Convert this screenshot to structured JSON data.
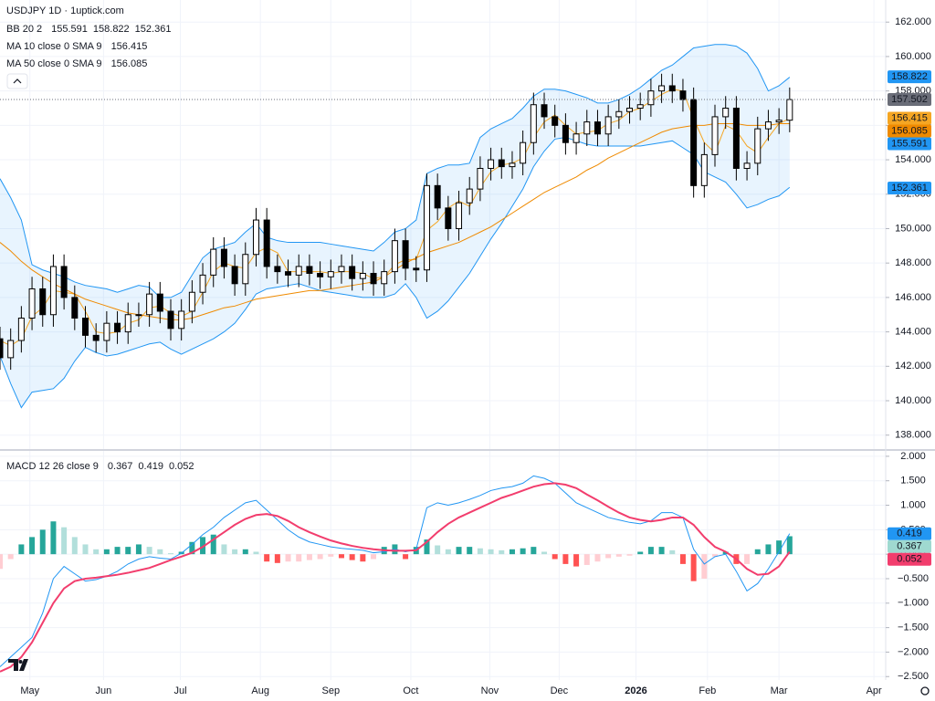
{
  "chart_data": [
    {
      "type": "candlestick",
      "title": "USDJPY 1D · 1uptick.com",
      "x": [
        0,
        1,
        2,
        3,
        4,
        5,
        6,
        7,
        8,
        9,
        10,
        11,
        12,
        13,
        14,
        15,
        16,
        17,
        18,
        19,
        20,
        21,
        22,
        23,
        24,
        25,
        26,
        27,
        28,
        29,
        30,
        31,
        32,
        33,
        34,
        35,
        36,
        37,
        38,
        39,
        40,
        41,
        42,
        43,
        44,
        45,
        46,
        47,
        48,
        49,
        50,
        51,
        52,
        53,
        54,
        55,
        56,
        57,
        58,
        59,
        60,
        61,
        62,
        63,
        64,
        65,
        66,
        67,
        68,
        69,
        70,
        71,
        72,
        73,
        74
      ],
      "xlim": [
        0,
        83
      ],
      "xticks": [
        {
          "value": 2.8,
          "label": "May"
        },
        {
          "value": 9.7,
          "label": "Jun"
        },
        {
          "value": 16.9,
          "label": "Jul"
        },
        {
          "value": 24.4,
          "label": "Aug"
        },
        {
          "value": 31.0,
          "label": "Sep"
        },
        {
          "value": 38.5,
          "label": "Oct"
        },
        {
          "value": 45.9,
          "label": "Nov"
        },
        {
          "value": 52.4,
          "label": "Dec"
        },
        {
          "value": 59.6,
          "label": "2026"
        },
        {
          "value": 66.3,
          "label": "Feb"
        },
        {
          "value": 73.0,
          "label": "Mar"
        },
        {
          "value": 81.9,
          "label": "Apr"
        }
      ],
      "open": [
        143.6,
        142.5,
        143.5,
        144.8,
        146.5,
        145.0,
        147.8,
        146.0,
        144.8,
        143.8,
        143.5,
        144.5,
        144.0,
        145.0,
        145.0,
        146.2,
        145.2,
        144.2,
        145.2,
        146.3,
        147.3,
        148.8,
        147.8,
        146.8,
        148.5,
        150.5,
        147.8,
        147.5,
        147.3,
        147.8,
        147.4,
        147.2,
        147.5,
        147.8,
        147.1,
        147.4,
        146.8,
        147.5,
        149.3,
        147.7,
        147.6,
        152.5,
        151.2,
        150.0,
        151.5,
        152.3,
        153.5,
        154.0,
        153.6,
        153.8,
        155.0,
        157.2,
        156.5,
        156.0,
        155.0,
        155.5,
        156.2,
        155.5,
        156.5,
        156.8,
        157.0,
        157.2,
        158.0,
        158.3,
        158.0,
        157.5,
        152.5,
        154.3,
        156.5,
        157.0,
        153.5,
        153.8,
        155.8,
        156.2,
        156.3
      ],
      "high": [
        144.3,
        144.2,
        145.5,
        147.2,
        147.2,
        148.5,
        148.5,
        146.7,
        145.5,
        144.5,
        145.2,
        145.2,
        145.7,
        145.7,
        146.9,
        146.9,
        145.9,
        145.9,
        147.0,
        148.0,
        149.5,
        149.5,
        148.5,
        149.2,
        151.2,
        151.2,
        148.5,
        148.2,
        148.5,
        148.5,
        148.1,
        148.2,
        148.5,
        148.5,
        148.1,
        148.1,
        148.2,
        150.0,
        150.0,
        148.4,
        153.2,
        153.2,
        151.9,
        152.2,
        153.0,
        154.2,
        154.7,
        154.7,
        154.5,
        155.7,
        157.9,
        157.9,
        157.2,
        156.7,
        156.2,
        156.9,
        156.9,
        157.2,
        157.5,
        157.7,
        157.9,
        158.7,
        159.0,
        159.0,
        158.7,
        158.2,
        155.0,
        157.2,
        157.7,
        157.7,
        154.5,
        156.5,
        156.9,
        157.0,
        158.2
      ],
      "low": [
        141.8,
        141.8,
        142.8,
        144.1,
        144.3,
        144.3,
        145.3,
        144.1,
        143.1,
        142.8,
        142.8,
        143.3,
        143.3,
        144.3,
        144.3,
        144.5,
        143.5,
        143.5,
        144.5,
        145.6,
        146.6,
        147.1,
        146.1,
        146.1,
        147.8,
        147.1,
        146.8,
        146.6,
        146.6,
        146.7,
        146.5,
        146.5,
        146.8,
        146.4,
        146.4,
        146.1,
        146.1,
        146.8,
        147.0,
        146.9,
        146.9,
        150.5,
        149.3,
        149.3,
        150.8,
        151.6,
        152.8,
        152.9,
        152.9,
        153.1,
        154.3,
        155.8,
        155.3,
        154.3,
        154.3,
        154.8,
        154.8,
        154.8,
        155.8,
        156.1,
        156.3,
        156.5,
        157.3,
        157.3,
        156.8,
        151.8,
        151.8,
        153.6,
        155.8,
        152.8,
        152.8,
        153.1,
        155.1,
        155.5,
        155.6
      ],
      "close": [
        142.5,
        143.5,
        144.8,
        146.5,
        145.0,
        147.8,
        146.0,
        144.8,
        143.8,
        143.5,
        144.5,
        144.0,
        145.0,
        145.0,
        146.2,
        145.2,
        144.2,
        145.2,
        146.3,
        147.3,
        148.8,
        147.8,
        146.8,
        148.5,
        150.5,
        147.8,
        147.5,
        147.3,
        147.8,
        147.4,
        147.2,
        147.5,
        147.8,
        147.1,
        147.4,
        146.8,
        147.5,
        149.3,
        147.7,
        147.6,
        152.5,
        151.2,
        150.0,
        151.5,
        152.3,
        153.5,
        154.0,
        153.6,
        153.8,
        155.0,
        157.2,
        156.5,
        156.0,
        155.0,
        155.5,
        156.2,
        155.5,
        156.5,
        156.8,
        157.0,
        157.2,
        158.0,
        158.3,
        158.0,
        157.5,
        152.5,
        154.3,
        156.5,
        157.0,
        153.5,
        153.8,
        155.8,
        156.2,
        156.3,
        157.5
      ],
      "up_color": "#ffffff",
      "down_color": "#000000",
      "wick_color": "#000000",
      "indicators": [
        {
          "name": "BB 20 2",
          "color": "#2196f3",
          "fill": "#2196f3",
          "upper": [
            152.9,
            151.8,
            150.5,
            147.9,
            147.6,
            147.4,
            147.2,
            146.9,
            146.7,
            146.6,
            146.5,
            146.3,
            146.5,
            146.7,
            146.6,
            146.0,
            146.0,
            146.3,
            147.3,
            148.3,
            148.8,
            149.0,
            149.2,
            149.8,
            150.3,
            149.5,
            149.3,
            149.2,
            149.2,
            149.2,
            149.2,
            149.1,
            149.0,
            148.9,
            148.8,
            148.7,
            149.2,
            149.8,
            150.0,
            150.5,
            153.2,
            153.5,
            153.7,
            153.7,
            153.8,
            155.3,
            155.8,
            156.1,
            156.4,
            157.0,
            157.7,
            158.1,
            158.1,
            158.0,
            157.8,
            157.6,
            157.3,
            157.3,
            157.5,
            157.8,
            158.2,
            158.7,
            159.2,
            159.5,
            160.0,
            160.5,
            160.6,
            160.7,
            160.7,
            160.6,
            160.2,
            159.3,
            158.0,
            158.3,
            158.8
          ],
          "lower": [
            142.6,
            141.0,
            139.6,
            140.5,
            140.6,
            140.7,
            141.3,
            142.3,
            143.1,
            142.8,
            142.6,
            142.7,
            142.9,
            143.1,
            143.3,
            143.4,
            143.0,
            142.7,
            143.0,
            143.3,
            143.6,
            144.0,
            144.5,
            145.3,
            146.2,
            146.5,
            146.6,
            146.7,
            146.8,
            146.6,
            146.4,
            146.3,
            146.2,
            146.1,
            146.0,
            146.0,
            146.0,
            146.2,
            146.8,
            146.0,
            144.8,
            145.2,
            145.8,
            146.6,
            147.4,
            148.4,
            149.4,
            150.3,
            151.3,
            152.3,
            153.6,
            154.5,
            155.2,
            155.3,
            155.1,
            154.9,
            154.8,
            154.8,
            154.8,
            154.8,
            154.8,
            154.9,
            155.0,
            155.1,
            154.7,
            154.3,
            153.3,
            153.0,
            152.7,
            152.0,
            151.2,
            151.4,
            151.7,
            151.9,
            152.4
          ],
          "readout": [
            155.591,
            158.822,
            152.361
          ]
        },
        {
          "name": "MA 10 close 0 SMA 9",
          "color": "#f5a623",
          "values": [
            143.5,
            143.2,
            143.6,
            144.9,
            145.4,
            146.4,
            146.3,
            146.2,
            145.2,
            144.0,
            143.9,
            144.0,
            144.5,
            144.7,
            145.4,
            145.5,
            145.1,
            144.9,
            145.2,
            146.3,
            147.5,
            148.0,
            147.8,
            147.7,
            148.6,
            148.9,
            148.6,
            147.5,
            147.5,
            147.5,
            147.5,
            147.4,
            147.5,
            147.5,
            147.4,
            147.1,
            147.2,
            147.9,
            148.2,
            148.2,
            149.9,
            150.4,
            151.2,
            151.6,
            151.3,
            152.4,
            153.3,
            153.7,
            153.8,
            154.1,
            155.3,
            156.2,
            156.6,
            156.0,
            155.5,
            155.6,
            155.7,
            156.1,
            156.3,
            156.8,
            157.0,
            157.4,
            157.8,
            158.1,
            158.0,
            156.4,
            155.0,
            154.4,
            156.0,
            155.7,
            154.8,
            154.4,
            155.3,
            156.1,
            156.4
          ],
          "readout": [
            156.415
          ]
        },
        {
          "name": "MA 50 close 0 SMA 9",
          "color": "#ef8a00",
          "values": [
            149.2,
            148.7,
            148.1,
            147.6,
            147.2,
            146.8,
            146.5,
            146.2,
            145.9,
            145.7,
            145.5,
            145.3,
            145.1,
            145.0,
            144.9,
            144.8,
            144.7,
            144.7,
            144.8,
            145.0,
            145.2,
            145.4,
            145.5,
            145.7,
            145.9,
            146.0,
            146.1,
            146.2,
            146.3,
            146.4,
            146.4,
            146.5,
            146.6,
            146.7,
            146.8,
            146.9,
            147.2,
            147.6,
            148.0,
            148.3,
            148.6,
            148.8,
            149.0,
            149.2,
            149.5,
            149.8,
            150.1,
            150.5,
            150.9,
            151.3,
            151.7,
            152.1,
            152.4,
            152.7,
            153.0,
            153.4,
            153.7,
            154.1,
            154.4,
            154.7,
            155.0,
            155.3,
            155.6,
            155.8,
            155.9,
            156.0,
            156.0,
            156.1,
            156.1,
            156.1,
            156.0,
            156.0,
            156.0,
            156.1,
            156.1
          ],
          "readout": [
            156.085
          ]
        }
      ],
      "last_price": 157.502,
      "last_price_color": "#6a6d78",
      "ylim": [
        137.19,
        162.33
      ],
      "yticks": [
        {
          "value": 138,
          "label": "138.000"
        },
        {
          "value": 140,
          "label": "140.000"
        },
        {
          "value": 142,
          "label": "142.000"
        },
        {
          "value": 144,
          "label": "144.000"
        },
        {
          "value": 146,
          "label": "146.000"
        },
        {
          "value": 148,
          "label": "148.000"
        },
        {
          "value": 150,
          "label": "150.000"
        },
        {
          "value": 152,
          "label": "152.000"
        },
        {
          "value": 154,
          "label": "154.000"
        },
        {
          "value": 156,
          "label": "156.000"
        },
        {
          "value": 158,
          "label": "158.000"
        },
        {
          "value": 160,
          "label": "160.000"
        },
        {
          "value": 162,
          "label": "162.000"
        }
      ],
      "grid": true
    },
    {
      "type": "macd",
      "title": "MACD 12 26 close 9",
      "histogram": {
        "values": [
          -0.3,
          -0.1,
          0.2,
          0.35,
          0.5,
          0.67,
          0.55,
          0.35,
          0.2,
          0.1,
          0.1,
          0.15,
          0.15,
          0.2,
          0.15,
          0.1,
          0.02,
          0.05,
          0.25,
          0.35,
          0.4,
          0.2,
          0.1,
          0.1,
          0.05,
          -0.15,
          -0.18,
          -0.15,
          -0.15,
          -0.12,
          -0.1,
          -0.05,
          -0.08,
          -0.12,
          -0.15,
          -0.1,
          0.15,
          0.2,
          -0.1,
          0.15,
          0.3,
          0.18,
          0.1,
          0.15,
          0.15,
          0.12,
          0.1,
          0.08,
          0.1,
          0.12,
          0.15,
          0.05,
          -0.1,
          -0.2,
          -0.25,
          -0.22,
          -0.15,
          -0.08,
          -0.05,
          -0.03,
          0.05,
          0.15,
          0.15,
          0.08,
          -0.2,
          -0.55,
          -0.5,
          -0.05,
          0.05,
          -0.2,
          -0.2,
          0.1,
          0.2,
          0.28,
          0.367
        ],
        "colors": {
          "above_rising": "#26a69a",
          "above_falling": "#b2dfdb",
          "below_falling": "#ff5252",
          "below_rising": "#ffcdd2"
        }
      },
      "macd": {
        "color": "#2196f3",
        "values": [
          -2.3,
          -2.1,
          -1.9,
          -1.7,
          -1.2,
          -0.5,
          -0.25,
          -0.4,
          -0.55,
          -0.52,
          -0.45,
          -0.35,
          -0.2,
          -0.1,
          -0.05,
          -0.08,
          -0.1,
          0.02,
          0.2,
          0.4,
          0.55,
          0.75,
          0.9,
          1.05,
          1.1,
          0.9,
          0.7,
          0.5,
          0.35,
          0.25,
          0.2,
          0.15,
          0.12,
          0.1,
          0.08,
          0.03,
          0.05,
          0.1,
          0.05,
          0.1,
          0.95,
          1.05,
          1.0,
          1.05,
          1.12,
          1.2,
          1.3,
          1.35,
          1.38,
          1.45,
          1.6,
          1.55,
          1.45,
          1.25,
          1.05,
          0.95,
          0.85,
          0.75,
          0.7,
          0.65,
          0.62,
          0.68,
          0.85,
          0.85,
          0.75,
          0.1,
          -0.2,
          -0.05,
          0.0,
          -0.35,
          -0.75,
          -0.6,
          -0.3,
          0.05,
          0.42
        ]
      },
      "signal": {
        "color": "#f23d6d",
        "values": [
          -2.4,
          -2.3,
          -2.1,
          -1.8,
          -1.4,
          -1.0,
          -0.7,
          -0.55,
          -0.5,
          -0.48,
          -0.45,
          -0.42,
          -0.38,
          -0.33,
          -0.28,
          -0.2,
          -0.12,
          -0.05,
          0.03,
          0.15,
          0.3,
          0.45,
          0.6,
          0.72,
          0.8,
          0.82,
          0.78,
          0.68,
          0.55,
          0.45,
          0.36,
          0.28,
          0.22,
          0.17,
          0.13,
          0.1,
          0.08,
          0.07,
          0.07,
          0.08,
          0.25,
          0.45,
          0.62,
          0.75,
          0.85,
          0.95,
          1.05,
          1.15,
          1.22,
          1.3,
          1.38,
          1.43,
          1.45,
          1.42,
          1.35,
          1.22,
          1.1,
          0.97,
          0.85,
          0.75,
          0.7,
          0.67,
          0.7,
          0.75,
          0.75,
          0.6,
          0.35,
          0.15,
          0.05,
          -0.1,
          -0.3,
          -0.42,
          -0.4,
          -0.25,
          0.05
        ]
      },
      "readout": [
        0.367,
        0.419,
        0.052
      ],
      "readout_colors": [
        "#9fd9d0",
        "#2196f3",
        "#f23d6d"
      ],
      "ylim": [
        -2.57,
        2.11
      ],
      "yticks": [
        {
          "value": 2,
          "label": "2.000"
        },
        {
          "value": 1.5,
          "label": "1.500"
        },
        {
          "value": 1,
          "label": "1.000"
        },
        {
          "value": 0.5,
          "label": "0.500"
        },
        {
          "value": 0,
          "label": "0.000"
        },
        {
          "value": -0.5,
          "label": "−0.500"
        },
        {
          "value": -1,
          "label": "−1.000"
        },
        {
          "value": -1.5,
          "label": "−1.500"
        },
        {
          "value": -2,
          "label": "−2.000"
        },
        {
          "value": -2.5,
          "label": "−2.500"
        }
      ],
      "grid": true
    }
  ]
}
